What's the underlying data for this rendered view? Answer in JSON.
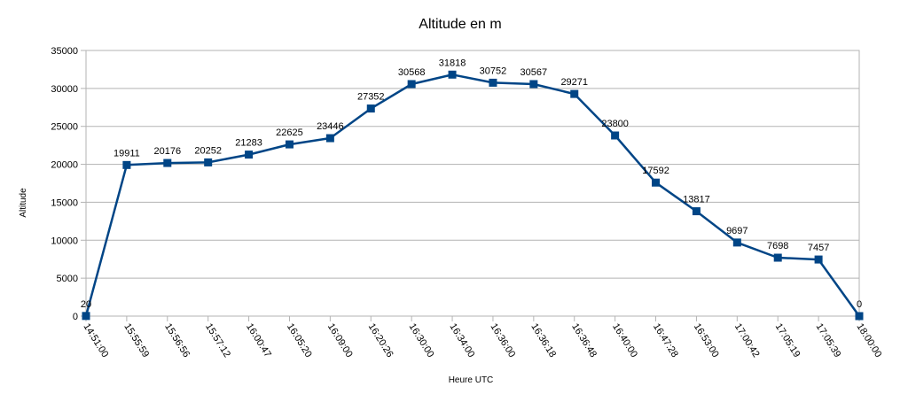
{
  "chart_data": {
    "type": "line",
    "title": "Altitude en m",
    "xlabel": "Heure UTC",
    "ylabel": "Altitude",
    "ylim": [
      0,
      35000
    ],
    "yticks": [
      0,
      5000,
      10000,
      15000,
      20000,
      25000,
      30000,
      35000
    ],
    "grid": true,
    "legend": "none",
    "categories": [
      "14:51:00",
      "15:55:59",
      "15:56:56",
      "15:57:12",
      "16:00:47",
      "16:05:20",
      "16:09:00",
      "16:20:26",
      "16:30:00",
      "16:34:00",
      "16:36:00",
      "16:36:18",
      "16:36:48",
      "16:40:00",
      "16:47:28",
      "16:53:00",
      "17:00:42",
      "17:05:19",
      "17:05:39",
      "18:00:00"
    ],
    "series": [
      {
        "values": [
          20,
          19911,
          20176,
          20252,
          21283,
          22625,
          23446,
          27352,
          30568,
          31818,
          30752,
          30567,
          29271,
          23800,
          17592,
          13817,
          9697,
          7698,
          7457,
          0
        ],
        "color": "#004586"
      }
    ]
  }
}
